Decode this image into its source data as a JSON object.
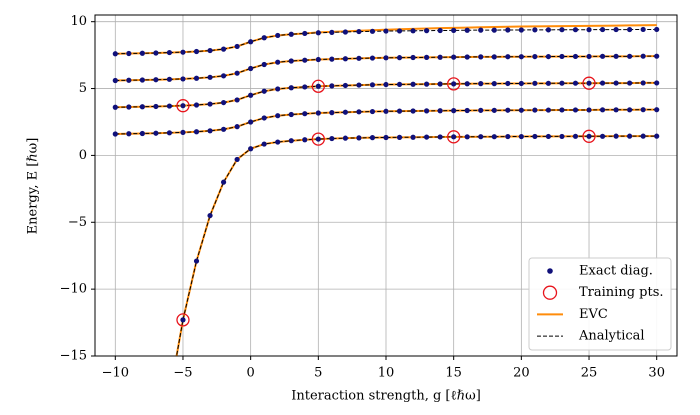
{
  "chart_data": {
    "type": "line",
    "xlabel": "Interaction strength, g [ℓℏω]",
    "ylabel": "Energy, E [ℏω]",
    "xlim": [
      -11.5,
      31.5
    ],
    "ylim": [
      -15,
      10.5
    ],
    "xticks": [
      {
        "value": -10,
        "label": "−10"
      },
      {
        "value": -5,
        "label": "−5"
      },
      0,
      5,
      10,
      15,
      20,
      25,
      30
    ],
    "yticks": [
      {
        "value": -15,
        "label": "−15"
      },
      {
        "value": -10,
        "label": "−10"
      },
      {
        "value": -5,
        "label": "−5"
      },
      0,
      5,
      10
    ],
    "grid": true,
    "legend": "lower right",
    "x": [
      -10,
      -9,
      -8,
      -7,
      -6,
      -5,
      -4,
      -3,
      -2,
      -1,
      0,
      1,
      2,
      3,
      4,
      5,
      6,
      7,
      8,
      9,
      10,
      11,
      12,
      13,
      14,
      15,
      16,
      17,
      18,
      19,
      20,
      21,
      22,
      23,
      24,
      25,
      26,
      27,
      28,
      29,
      30
    ],
    "series": [
      {
        "name": "Exact diag.",
        "type": "scatter",
        "marker": "dot",
        "color": "#10107a",
        "values": [
          [
            null,
            null,
            null,
            null,
            null,
            -12.3,
            -7.9,
            -4.5,
            -2.0,
            -0.3,
            0.5,
            0.85,
            1.0,
            1.1,
            1.17,
            1.22,
            1.26,
            1.29,
            1.31,
            1.33,
            1.34,
            1.35,
            1.36,
            1.37,
            1.38,
            1.39,
            1.39,
            1.4,
            1.4,
            1.41,
            1.41,
            1.42,
            1.42,
            1.42,
            1.43,
            1.43,
            1.43,
            1.44,
            1.44,
            1.44,
            1.44
          ],
          [
            1.6,
            1.62,
            1.64,
            1.66,
            1.69,
            1.72,
            1.77,
            1.84,
            1.95,
            2.15,
            2.5,
            2.8,
            2.97,
            3.06,
            3.12,
            3.17,
            3.2,
            3.23,
            3.26,
            3.28,
            3.3,
            3.31,
            3.32,
            3.33,
            3.34,
            3.35,
            3.36,
            3.37,
            3.37,
            3.38,
            3.38,
            3.39,
            3.39,
            3.4,
            3.4,
            3.4,
            3.41,
            3.41,
            3.41,
            3.42,
            3.42
          ],
          [
            3.6,
            3.62,
            3.64,
            3.66,
            3.69,
            3.72,
            3.77,
            3.84,
            3.95,
            4.15,
            4.5,
            4.8,
            4.97,
            5.06,
            5.12,
            5.17,
            5.2,
            5.23,
            5.26,
            5.28,
            5.3,
            5.31,
            5.32,
            5.33,
            5.34,
            5.35,
            5.36,
            5.37,
            5.37,
            5.38,
            5.38,
            5.39,
            5.39,
            5.4,
            5.4,
            5.4,
            5.41,
            5.41,
            5.41,
            5.42,
            5.42
          ],
          [
            5.6,
            5.62,
            5.64,
            5.66,
            5.69,
            5.72,
            5.77,
            5.84,
            5.95,
            6.15,
            6.5,
            6.8,
            6.97,
            7.06,
            7.12,
            7.17,
            7.2,
            7.23,
            7.26,
            7.28,
            7.3,
            7.31,
            7.32,
            7.33,
            7.34,
            7.35,
            7.36,
            7.37,
            7.37,
            7.38,
            7.38,
            7.39,
            7.39,
            7.4,
            7.4,
            7.4,
            7.41,
            7.41,
            7.41,
            7.42,
            7.42
          ],
          [
            7.6,
            7.62,
            7.64,
            7.66,
            7.69,
            7.72,
            7.77,
            7.84,
            7.95,
            8.15,
            8.5,
            8.8,
            8.97,
            9.06,
            9.12,
            9.17,
            9.2,
            9.23,
            9.26,
            9.28,
            9.3,
            9.31,
            9.32,
            9.33,
            9.34,
            9.35,
            9.36,
            9.37,
            9.37,
            9.38,
            9.38,
            9.39,
            9.39,
            9.4,
            9.4,
            9.4,
            9.41,
            9.41,
            9.41,
            9.42,
            9.42
          ]
        ]
      },
      {
        "name": "Training pts.",
        "type": "scatter",
        "marker": "circle",
        "color": "#e8141c",
        "x": [
          -5,
          -5,
          5,
          5,
          15,
          15,
          25,
          25
        ],
        "values": [
          -12.3,
          3.72,
          1.22,
          5.17,
          1.39,
          5.35,
          1.43,
          5.4
        ]
      },
      {
        "name": "EVC",
        "type": "line",
        "linestyle": "solid",
        "color": "#ff8c0a",
        "values": [
          [
            null,
            null,
            null,
            null,
            -18.0,
            -12.3,
            -7.9,
            -4.5,
            -2.0,
            -0.3,
            0.5,
            0.85,
            1.0,
            1.1,
            1.17,
            1.22,
            1.26,
            1.29,
            1.31,
            1.33,
            1.34,
            1.35,
            1.36,
            1.37,
            1.38,
            1.39,
            1.39,
            1.4,
            1.4,
            1.41,
            1.41,
            1.42,
            1.42,
            1.42,
            1.43,
            1.43,
            1.43,
            1.44,
            1.44,
            1.44,
            1.44
          ],
          [
            1.6,
            1.62,
            1.64,
            1.66,
            1.69,
            1.72,
            1.77,
            1.84,
            1.95,
            2.15,
            2.5,
            2.8,
            2.97,
            3.06,
            3.12,
            3.17,
            3.2,
            3.23,
            3.26,
            3.28,
            3.3,
            3.31,
            3.32,
            3.33,
            3.34,
            3.35,
            3.36,
            3.37,
            3.37,
            3.38,
            3.38,
            3.39,
            3.39,
            3.4,
            3.4,
            3.4,
            3.41,
            3.41,
            3.41,
            3.42,
            3.42
          ],
          [
            3.6,
            3.62,
            3.64,
            3.66,
            3.69,
            3.72,
            3.77,
            3.84,
            3.95,
            4.15,
            4.5,
            4.8,
            4.97,
            5.06,
            5.12,
            5.17,
            5.2,
            5.23,
            5.26,
            5.28,
            5.3,
            5.31,
            5.32,
            5.33,
            5.34,
            5.35,
            5.36,
            5.37,
            5.37,
            5.38,
            5.38,
            5.39,
            5.39,
            5.4,
            5.4,
            5.4,
            5.41,
            5.41,
            5.41,
            5.42,
            5.42
          ],
          [
            5.6,
            5.62,
            5.64,
            5.66,
            5.69,
            5.72,
            5.77,
            5.84,
            5.95,
            6.15,
            6.5,
            6.8,
            6.97,
            7.06,
            7.12,
            7.17,
            7.2,
            7.23,
            7.26,
            7.28,
            7.3,
            7.31,
            7.32,
            7.33,
            7.34,
            7.35,
            7.36,
            7.37,
            7.37,
            7.38,
            7.38,
            7.39,
            7.39,
            7.4,
            7.4,
            7.4,
            7.41,
            7.41,
            7.41,
            7.42,
            7.42
          ],
          [
            7.6,
            7.62,
            7.64,
            7.66,
            7.69,
            7.72,
            7.77,
            7.84,
            7.95,
            8.15,
            8.5,
            8.8,
            8.97,
            9.06,
            9.12,
            9.2,
            9.24,
            9.28,
            9.32,
            9.36,
            9.4,
            9.43,
            9.46,
            9.49,
            9.52,
            9.54,
            9.56,
            9.58,
            9.6,
            9.62,
            9.64,
            9.65,
            9.66,
            9.67,
            9.68,
            9.69,
            9.7,
            9.71,
            9.72,
            9.73,
            9.74
          ]
        ]
      },
      {
        "name": "Analytical",
        "type": "line",
        "linestyle": "dashed",
        "color": "#000000",
        "values": [
          [
            null,
            null,
            null,
            null,
            -18.0,
            -12.3,
            -7.9,
            -4.5,
            -2.0,
            -0.3,
            0.5,
            0.85,
            1.0,
            1.1,
            1.17,
            1.22,
            1.26,
            1.29,
            1.31,
            1.33,
            1.34,
            1.35,
            1.36,
            1.37,
            1.38,
            1.39,
            1.39,
            1.4,
            1.4,
            1.41,
            1.41,
            1.42,
            1.42,
            1.42,
            1.43,
            1.43,
            1.43,
            1.44,
            1.44,
            1.44,
            1.44
          ],
          [
            1.6,
            1.62,
            1.64,
            1.66,
            1.69,
            1.72,
            1.77,
            1.84,
            1.95,
            2.15,
            2.5,
            2.8,
            2.97,
            3.06,
            3.12,
            3.17,
            3.2,
            3.23,
            3.26,
            3.28,
            3.3,
            3.31,
            3.32,
            3.33,
            3.34,
            3.35,
            3.36,
            3.37,
            3.37,
            3.38,
            3.38,
            3.39,
            3.39,
            3.4,
            3.4,
            3.4,
            3.41,
            3.41,
            3.41,
            3.42,
            3.42
          ],
          [
            3.6,
            3.62,
            3.64,
            3.66,
            3.69,
            3.72,
            3.77,
            3.84,
            3.95,
            4.15,
            4.5,
            4.8,
            4.97,
            5.06,
            5.12,
            5.17,
            5.2,
            5.23,
            5.26,
            5.28,
            5.3,
            5.31,
            5.32,
            5.33,
            5.34,
            5.35,
            5.36,
            5.37,
            5.37,
            5.38,
            5.38,
            5.39,
            5.39,
            5.4,
            5.4,
            5.4,
            5.41,
            5.41,
            5.41,
            5.42,
            5.42
          ],
          [
            5.6,
            5.62,
            5.64,
            5.66,
            5.69,
            5.72,
            5.77,
            5.84,
            5.95,
            6.15,
            6.5,
            6.8,
            6.97,
            7.06,
            7.12,
            7.17,
            7.2,
            7.23,
            7.26,
            7.28,
            7.3,
            7.31,
            7.32,
            7.33,
            7.34,
            7.35,
            7.36,
            7.37,
            7.37,
            7.38,
            7.38,
            7.39,
            7.39,
            7.4,
            7.4,
            7.4,
            7.41,
            7.41,
            7.41,
            7.42,
            7.42
          ],
          [
            7.6,
            7.62,
            7.64,
            7.66,
            7.69,
            7.72,
            7.77,
            7.84,
            7.95,
            8.15,
            8.5,
            8.8,
            8.97,
            9.06,
            9.12,
            9.17,
            9.2,
            9.23,
            9.26,
            9.28,
            9.3,
            9.31,
            9.32,
            9.33,
            9.34,
            9.35,
            9.36,
            9.37,
            9.37,
            9.38,
            9.38,
            9.39,
            9.39,
            9.4,
            9.4,
            9.4,
            9.41,
            9.41,
            9.41,
            9.42,
            9.42
          ]
        ]
      }
    ]
  }
}
